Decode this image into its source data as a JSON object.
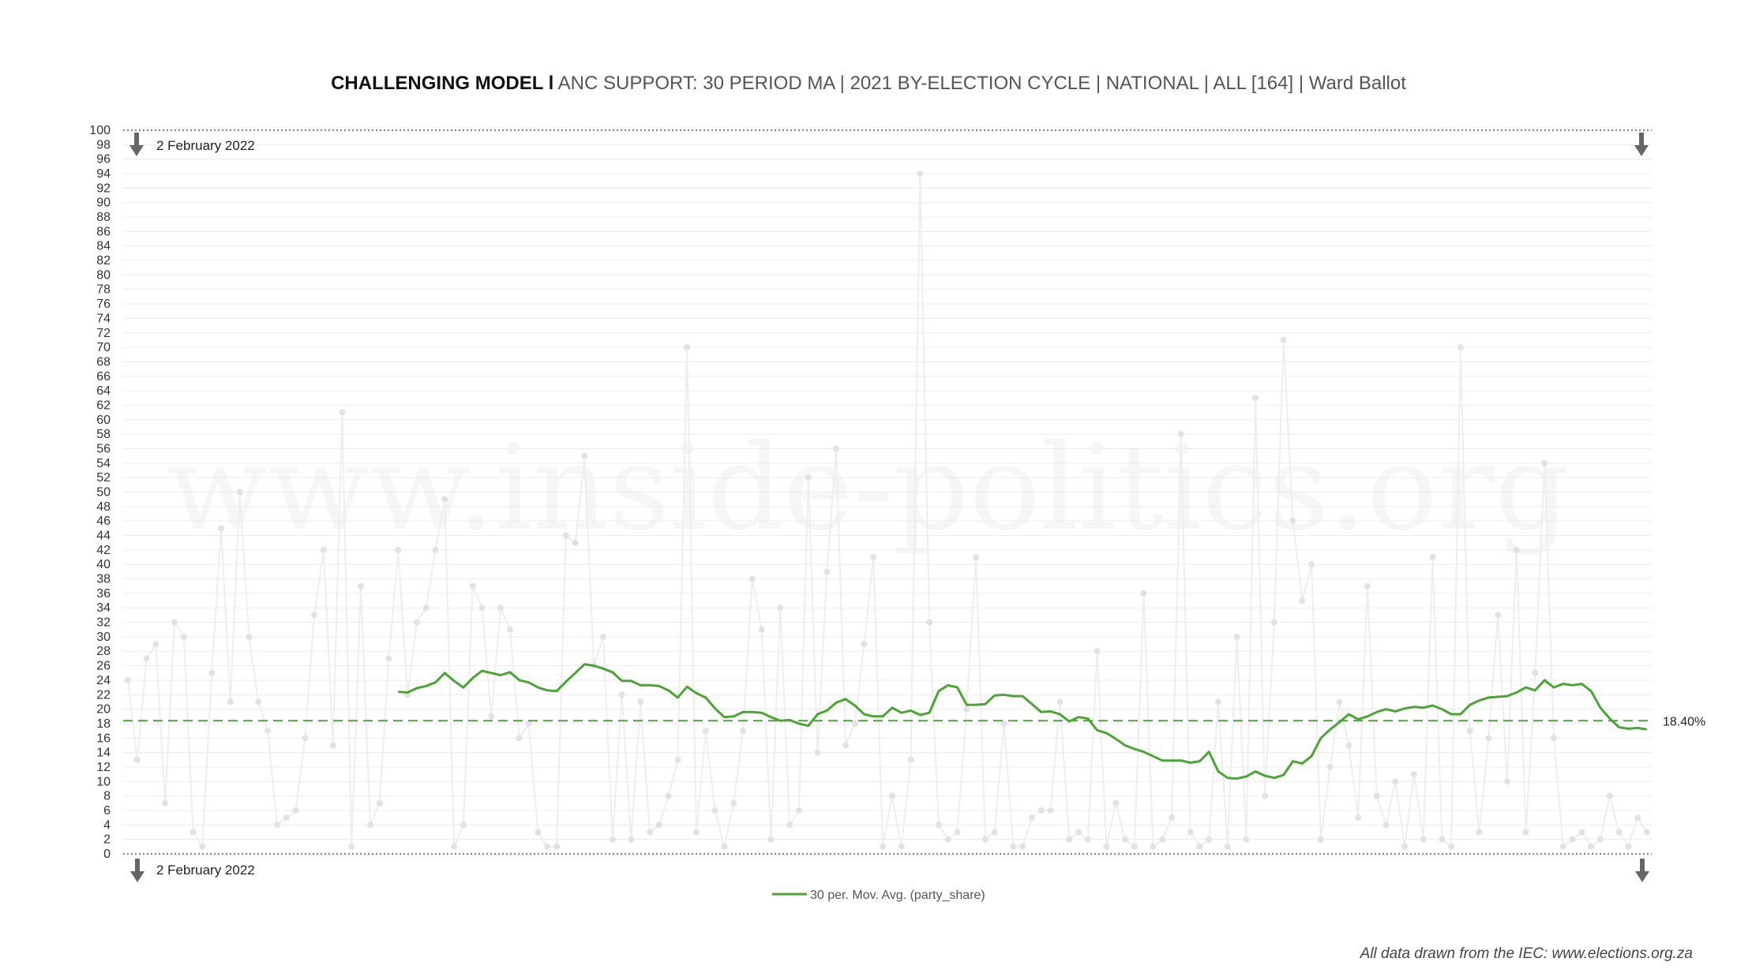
{
  "title": {
    "bold": "CHALLENGING MODEL l",
    "rest": " ANC SUPPORT: 30 PERIOD MA | 2021 BY-ELECTION CYCLE | NATIONAL | ALL [164] | Ward Ballot"
  },
  "watermark": "www.inside-politics.org",
  "credit": "All data drawn from the IEC: www.elections.org.za",
  "chart_data": {
    "type": "line",
    "title": "CHALLENGING MODEL l ANC SUPPORT: 30 PERIOD MA | 2021 BY-ELECTION CYCLE | NATIONAL | ALL [164] | Ward Ballot",
    "xlabel": "",
    "ylabel": "",
    "ylim": [
      0,
      100
    ],
    "ytick_step": 2,
    "grid": true,
    "legend": "bottom-center",
    "reference_line": {
      "value": 18.4,
      "label": "18.40%",
      "style": "dashed"
    },
    "date_markers": [
      {
        "label": "2 February 2022",
        "position": "top"
      },
      {
        "label": "2 February 2022",
        "position": "bottom"
      }
    ],
    "colors": {
      "ma": "#4aa632",
      "raw": "#eeeeee",
      "raw_points": "#e2e2e2",
      "ref": "#4aa632",
      "arrow": "#666666"
    },
    "x_count": 164,
    "series": [
      {
        "name": "party_share",
        "visible_in_legend": false,
        "values": [
          24,
          13,
          27,
          29,
          7,
          32,
          30,
          3,
          1,
          25,
          45,
          21,
          50,
          30,
          21,
          17,
          4,
          5,
          6,
          16,
          33,
          42,
          15,
          61,
          1,
          37,
          4,
          7,
          27,
          42,
          22,
          32,
          34,
          42,
          49,
          1,
          4,
          37,
          34,
          19,
          34,
          31,
          16,
          18,
          3,
          1,
          1,
          44,
          43,
          55,
          26,
          30,
          2,
          22,
          2,
          21,
          3,
          4,
          8,
          13,
          70,
          3,
          17,
          6,
          1,
          7,
          17,
          38,
          31,
          2,
          34,
          4,
          6,
          52,
          14,
          39,
          56,
          15,
          18,
          29,
          41,
          1,
          8,
          1,
          13,
          94,
          32,
          4,
          2,
          3,
          20,
          41,
          2,
          3,
          18,
          1,
          1,
          5,
          6,
          6,
          21,
          2,
          3,
          2,
          28,
          1,
          7,
          2,
          1,
          36,
          1,
          2,
          5,
          58,
          3,
          1,
          2,
          21,
          1,
          30,
          2,
          63,
          8,
          32,
          71,
          46,
          35,
          40,
          2,
          12,
          21,
          15,
          5,
          37,
          8,
          4,
          10,
          1,
          11,
          2,
          41,
          2,
          1,
          70,
          17,
          3,
          16,
          33,
          10,
          42,
          3,
          25,
          54,
          16,
          1,
          2,
          3,
          1,
          2,
          8,
          3,
          1,
          5,
          3
        ]
      },
      {
        "name": "30 per. Mov. Avg. (party_share)",
        "start_index": 29,
        "values": [
          22.4,
          22.3,
          22.9,
          23.2,
          23.7,
          25.0,
          23.9,
          23.0,
          24.3,
          25.3,
          25.0,
          24.7,
          25.1,
          24.0,
          23.7,
          23.0,
          22.6,
          22.5,
          23.8,
          25.0,
          26.2,
          26.0,
          25.6,
          25.1,
          23.9,
          23.9,
          23.3,
          23.3,
          23.2,
          22.6,
          21.6,
          23.1,
          22.2,
          21.6,
          20.1,
          18.9,
          19.0,
          19.6,
          19.6,
          19.5,
          18.9,
          18.4,
          18.5,
          18.0,
          17.7,
          19.3,
          19.8,
          20.9,
          21.4,
          20.5,
          19.3,
          19.0,
          19.0,
          20.2,
          19.5,
          19.8,
          19.2,
          19.5,
          22.5,
          23.3,
          23.0,
          20.6,
          20.6,
          20.7,
          21.9,
          22.0,
          21.8,
          21.8,
          20.7,
          19.6,
          19.7,
          19.3,
          18.3,
          18.9,
          18.7,
          17.1,
          16.7,
          15.9,
          15.0,
          14.5,
          14.1,
          13.5,
          12.9,
          12.9,
          12.9,
          12.6,
          12.8,
          14.1,
          11.4,
          10.5,
          10.4,
          10.7,
          11.4,
          10.8,
          10.5,
          10.9,
          12.8,
          12.5,
          13.5,
          16.0,
          17.2,
          18.2,
          19.3,
          18.6,
          19.0,
          19.6,
          20.0,
          19.7,
          20.1,
          20.3,
          20.2,
          20.5,
          20.0,
          19.3,
          19.3,
          20.6,
          21.2,
          21.6,
          21.7,
          21.8,
          22.3,
          23.0,
          22.6,
          24.0,
          23.0,
          23.5,
          23.3,
          23.5,
          22.5,
          20.2,
          18.7,
          17.5,
          17.3,
          17.4,
          17.2
        ]
      }
    ]
  }
}
